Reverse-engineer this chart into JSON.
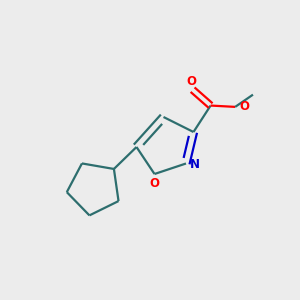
{
  "background_color": "#ececec",
  "bond_color": "#2d6e6e",
  "oxygen_color": "#ff0000",
  "nitrogen_color": "#0000cc",
  "line_width": 1.6,
  "figsize": [
    3.0,
    3.0
  ],
  "dpi": 100,
  "xlim": [
    0,
    10
  ],
  "ylim": [
    0,
    10
  ]
}
